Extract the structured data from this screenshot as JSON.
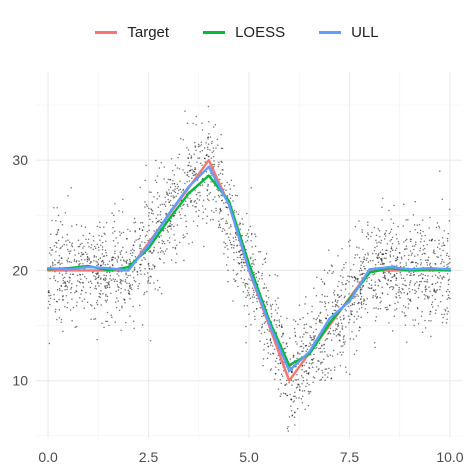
{
  "chart_data": {
    "type": "line",
    "title": "",
    "xlabel": "",
    "ylabel": "",
    "xlim": [
      -0.3,
      10.3
    ],
    "ylim": [
      4.8,
      38.0
    ],
    "x_ticks": [
      0.0,
      2.5,
      5.0,
      7.5,
      10.0
    ],
    "x_tick_labels": [
      "0.0",
      "2.5",
      "5.0",
      "7.5",
      "10.0"
    ],
    "y_ticks": [
      10,
      20,
      30
    ],
    "y_tick_labels": [
      "10",
      "20",
      "30"
    ],
    "grid": true,
    "legend_position": "top",
    "scatter": {
      "description_free": true,
      "color": "#000000",
      "count": 2500,
      "noise_sd_base": 2.4,
      "noise_sd_peak": 2.0,
      "seed": 7
    },
    "series": [
      {
        "name": "Target",
        "color": "#F8766D",
        "x": [
          0,
          0.5,
          1,
          1.5,
          2,
          2.5,
          3,
          3.5,
          4,
          4.5,
          5,
          5.5,
          6,
          6.5,
          7,
          7.5,
          8,
          8.5,
          9,
          9.5,
          10
        ],
        "values": [
          20.0,
          20.0,
          20.0,
          20.0,
          20.0,
          22.5,
          25.0,
          27.5,
          30.0,
          26.0,
          20.0,
          15.0,
          10.0,
          12.5,
          15.0,
          17.5,
          20.0,
          20.0,
          20.0,
          20.0,
          20.0
        ]
      },
      {
        "name": "LOESS",
        "color": "#00BA38",
        "x": [
          0,
          0.5,
          1,
          1.5,
          2,
          2.5,
          3,
          3.5,
          4,
          4.5,
          5,
          5.5,
          6,
          6.5,
          7,
          7.5,
          8,
          8.5,
          9,
          9.5,
          10
        ],
        "values": [
          20.1,
          20.2,
          20.4,
          20.0,
          20.3,
          22.0,
          24.6,
          27.0,
          28.6,
          26.3,
          20.6,
          15.5,
          11.4,
          12.4,
          15.2,
          17.4,
          19.8,
          20.2,
          20.0,
          20.1,
          20.0
        ]
      },
      {
        "name": "ULL",
        "color": "#619CFF",
        "x": [
          0,
          0.5,
          1,
          1.5,
          2,
          2.5,
          3,
          3.5,
          4,
          4.5,
          5,
          5.5,
          6,
          6.5,
          7,
          7.5,
          8,
          8.5,
          9,
          9.5,
          10
        ],
        "values": [
          20.2,
          20.1,
          20.3,
          20.2,
          20.0,
          22.3,
          25.1,
          27.6,
          29.4,
          26.0,
          20.1,
          15.2,
          10.9,
          12.6,
          15.6,
          17.2,
          20.1,
          20.3,
          20.1,
          20.2,
          20.1
        ]
      }
    ]
  }
}
